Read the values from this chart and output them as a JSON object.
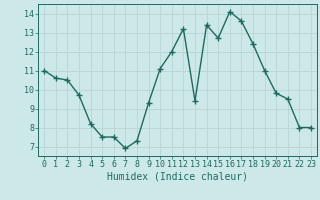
{
  "x": [
    0,
    1,
    2,
    3,
    4,
    5,
    6,
    7,
    8,
    9,
    10,
    11,
    12,
    13,
    14,
    15,
    16,
    17,
    18,
    19,
    20,
    21,
    22,
    23
  ],
  "y": [
    11.0,
    10.6,
    10.5,
    9.7,
    8.2,
    7.5,
    7.5,
    6.9,
    7.3,
    9.3,
    11.1,
    12.0,
    13.2,
    9.4,
    13.4,
    12.7,
    14.1,
    13.6,
    12.4,
    11.0,
    9.8,
    9.5,
    8.0,
    8.0
  ],
  "xlim": [
    -0.5,
    23.5
  ],
  "ylim": [
    6.5,
    14.5
  ],
  "yticks": [
    7,
    8,
    9,
    10,
    11,
    12,
    13,
    14
  ],
  "xticks": [
    0,
    1,
    2,
    3,
    4,
    5,
    6,
    7,
    8,
    9,
    10,
    11,
    12,
    13,
    14,
    15,
    16,
    17,
    18,
    19,
    20,
    21,
    22,
    23
  ],
  "xlabel": "Humidex (Indice chaleur)",
  "line_color": "#1e6b5e",
  "marker": "+",
  "marker_size": 4,
  "bg_color": "#cde8e8",
  "grid_color": "#b8d4d4",
  "tick_color": "#1e6b5e",
  "label_color": "#1e6b5e",
  "xlabel_fontsize": 7,
  "tick_fontsize": 6,
  "linewidth": 1.0
}
